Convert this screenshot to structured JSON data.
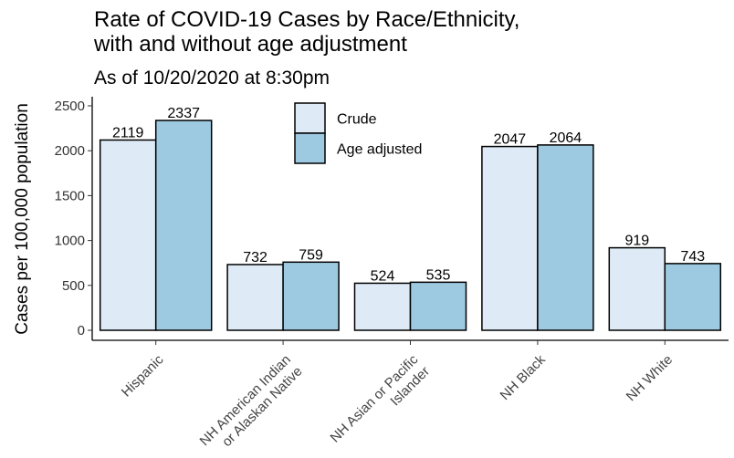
{
  "chart_data": {
    "type": "bar",
    "title_lines": [
      "Rate of COVID-19 Cases by Race/Ethnicity,",
      "with and without age adjustment"
    ],
    "subtitle": "As of 10/20/2020 at 8:30pm",
    "xlabel": "",
    "ylabel": "Cases per 100,000 population",
    "ylim": [
      0,
      2500
    ],
    "yticks": [
      0,
      500,
      1000,
      1500,
      2000,
      2500
    ],
    "grid": false,
    "legend_position": "top-center",
    "categories": [
      [
        "Hispanic"
      ],
      [
        "NH American Indian",
        "or Alaskan Native"
      ],
      [
        "NH Asian or Pacific",
        "Islander"
      ],
      [
        "NH Black"
      ],
      [
        "NH White"
      ]
    ],
    "series": [
      {
        "name": "Crude",
        "color": "#deebf7",
        "values": [
          2119,
          732,
          524,
          2047,
          919
        ]
      },
      {
        "name": "Age adjusted",
        "color": "#9ecae1",
        "values": [
          2337,
          759,
          535,
          2064,
          743
        ]
      }
    ]
  }
}
